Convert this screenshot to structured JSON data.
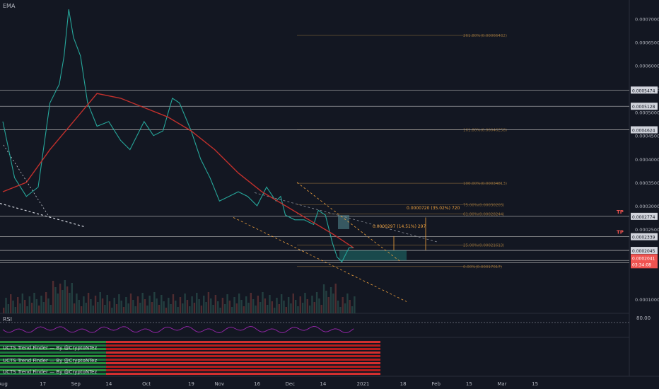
{
  "chart_data": {
    "type": "line",
    "title": "EMA",
    "price_axis": {
      "ticks": [
        {
          "v": 0.0007,
          "label": "0.0007000"
        },
        {
          "v": 0.00065,
          "label": "0.0006500"
        },
        {
          "v": 0.0006,
          "label": "0.0006000"
        },
        {
          "v": 0.00055,
          "label": "0.0005500"
        },
        {
          "v": 0.0005,
          "label": "0.0005000"
        },
        {
          "v": 0.00045,
          "label": "0.0004500"
        },
        {
          "v": 0.0004,
          "label": "0.0004000"
        },
        {
          "v": 0.00035,
          "label": "0.0003500"
        },
        {
          "v": 0.0003,
          "label": "0.0003000"
        },
        {
          "v": 0.00025,
          "label": "0.0002500"
        },
        {
          "v": 0.0001,
          "label": "0.0001000"
        }
      ],
      "ylim": [
        7e-05,
        0.00074
      ],
      "scale": "linear"
    },
    "x_ticks": [
      "Aug",
      "17",
      "Sep",
      "14",
      "Oct",
      "19",
      "Nov",
      "16",
      "Dec",
      "14",
      "2021",
      "18",
      "Feb",
      "15",
      "Mar",
      "15"
    ],
    "price_x_tick_days": [
      0,
      17,
      31,
      45,
      61,
      80,
      92,
      108,
      122,
      136,
      153,
      170,
      184,
      198,
      212,
      226
    ],
    "series": [
      {
        "name": "Price",
        "color": "#26a69a",
        "x_days": [
          0,
          5,
          10,
          15,
          20,
          24,
          26,
          28,
          30,
          33,
          36,
          40,
          45,
          50,
          54,
          60,
          64,
          68,
          72,
          75,
          80,
          84,
          88,
          92,
          96,
          100,
          104,
          108,
          112,
          116,
          118,
          120,
          124,
          128,
          132,
          134,
          137,
          140,
          142,
          144,
          146,
          147,
          149
        ],
        "y": [
          0.00048,
          0.00036,
          0.00032,
          0.00034,
          0.00052,
          0.00056,
          0.00062,
          0.00072,
          0.00066,
          0.00062,
          0.00052,
          0.00047,
          0.00048,
          0.00044,
          0.00042,
          0.00048,
          0.00045,
          0.00046,
          0.00053,
          0.00052,
          0.00046,
          0.0004,
          0.00036,
          0.00031,
          0.00032,
          0.00033,
          0.00032,
          0.0003,
          0.00034,
          0.00031,
          0.00032,
          0.00028,
          0.00027,
          0.00027,
          0.00026,
          0.00029,
          0.00028,
          0.00022,
          0.00019,
          0.00018,
          0.0002,
          0.00021,
          0.00021
        ]
      },
      {
        "name": "EMA",
        "color": "#c2302c",
        "x_days": [
          0,
          10,
          20,
          30,
          40,
          50,
          60,
          70,
          80,
          90,
          100,
          110,
          120,
          130,
          140,
          149
        ],
        "y": [
          0.00033,
          0.00035,
          0.00042,
          0.00048,
          0.00054,
          0.00053,
          0.00051,
          0.00049,
          0.00046,
          0.00042,
          0.00037,
          0.00033,
          0.0003,
          0.00027,
          0.00024,
          0.00021
        ]
      }
    ],
    "horizontal_levels": [
      {
        "v": 0.0005474,
        "label": "0.0005474"
      },
      {
        "v": 0.0005128,
        "label": "0.0005128"
      },
      {
        "v": 0.0004624,
        "label": "0.0004624"
      },
      {
        "v": 0.0002774,
        "label": "0.0002774"
      },
      {
        "v": 0.0002339,
        "label": "0.0002339"
      },
      {
        "v": 0.0002045,
        "label": "0.0002045"
      },
      {
        "v": 0.000183,
        "label": ""
      },
      {
        "v": 0.000178,
        "label": "0.0001780"
      }
    ],
    "current_price": {
      "v": 0.0002041,
      "label": "0.0002041",
      "countdown": "03:34:08"
    },
    "fib_levels": [
      {
        "v": 0.00066432,
        "label": "261.80%(0.00066432)"
      },
      {
        "v": 0.00046258,
        "label": "161.80%(0.00046258)"
      },
      {
        "v": 0.00034813,
        "label": "100.00%(0.00034813)"
      },
      {
        "v": 0.00030203,
        "label": "75.00%(0.00030203)"
      },
      {
        "v": 0.00028244,
        "label": "61.80%(0.00028244)"
      },
      {
        "v": 0.00021613,
        "label": "25.00%(0.00021613)"
      },
      {
        "v": 0.00017017,
        "label": "0.00%(0.00017017)"
      }
    ],
    "measures": [
      {
        "label": "0.0000720 (35.02%) 720"
      },
      {
        "label": "0.0000297 (14.51%) 297"
      }
    ],
    "tp_labels": [
      "TP",
      "TP"
    ],
    "rsi": {
      "title": "RSI",
      "level_label": "80.00"
    },
    "trend_finder": {
      "titles": [
        "UCTS Trend Finder — By @CryptoNTez",
        "UCTS Trend Finder — By @CryptoNTez",
        "UCTS Trend Finder — By @CryptoNTez"
      ]
    }
  }
}
